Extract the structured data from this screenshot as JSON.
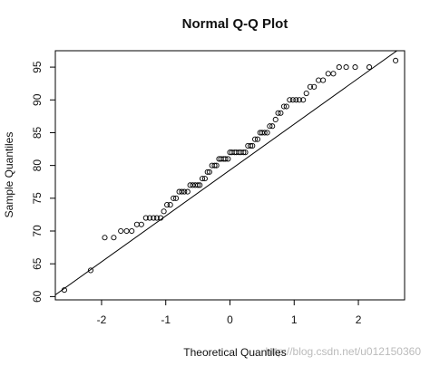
{
  "chart_data": {
    "type": "scatter",
    "title": "Normal Q-Q Plot",
    "xlabel": "Theoretical Quantiles",
    "ylabel": "Sample Quantiles",
    "xlim": [
      -2.72,
      2.72
    ],
    "ylim": [
      59.5,
      97.5
    ],
    "xticks": [
      -2,
      -1,
      0,
      1,
      2
    ],
    "yticks": [
      60,
      65,
      70,
      75,
      80,
      85,
      90,
      95
    ],
    "reference_line": {
      "slope": 7.0,
      "intercept": 79.3
    },
    "points": [
      [
        -2.58,
        61
      ],
      [
        -2.17,
        64
      ],
      [
        -1.95,
        69
      ],
      [
        -1.81,
        69
      ],
      [
        -1.7,
        70
      ],
      [
        -1.61,
        70
      ],
      [
        -1.53,
        70
      ],
      [
        -1.45,
        71
      ],
      [
        -1.38,
        71
      ],
      [
        -1.31,
        72
      ],
      [
        -1.25,
        72
      ],
      [
        -1.19,
        72
      ],
      [
        -1.14,
        72
      ],
      [
        -1.08,
        72
      ],
      [
        -1.03,
        73
      ],
      [
        -0.98,
        74
      ],
      [
        -0.93,
        74
      ],
      [
        -0.88,
        75
      ],
      [
        -0.84,
        75
      ],
      [
        -0.79,
        76
      ],
      [
        -0.75,
        76
      ],
      [
        -0.71,
        76
      ],
      [
        -0.66,
        76
      ],
      [
        -0.62,
        77
      ],
      [
        -0.58,
        77
      ],
      [
        -0.54,
        77
      ],
      [
        -0.5,
        77
      ],
      [
        -0.47,
        77
      ],
      [
        -0.43,
        78
      ],
      [
        -0.39,
        78
      ],
      [
        -0.35,
        79
      ],
      [
        -0.32,
        79
      ],
      [
        -0.28,
        80
      ],
      [
        -0.24,
        80
      ],
      [
        -0.21,
        80
      ],
      [
        -0.17,
        81
      ],
      [
        -0.14,
        81
      ],
      [
        -0.1,
        81
      ],
      [
        -0.07,
        81
      ],
      [
        -0.03,
        81
      ],
      [
        0.0,
        82
      ],
      [
        0.03,
        82
      ],
      [
        0.07,
        82
      ],
      [
        0.1,
        82
      ],
      [
        0.14,
        82
      ],
      [
        0.17,
        82
      ],
      [
        0.21,
        82
      ],
      [
        0.24,
        82
      ],
      [
        0.28,
        83
      ],
      [
        0.32,
        83
      ],
      [
        0.35,
        83
      ],
      [
        0.39,
        84
      ],
      [
        0.43,
        84
      ],
      [
        0.47,
        85
      ],
      [
        0.5,
        85
      ],
      [
        0.54,
        85
      ],
      [
        0.58,
        85
      ],
      [
        0.62,
        86
      ],
      [
        0.66,
        86
      ],
      [
        0.71,
        87
      ],
      [
        0.75,
        88
      ],
      [
        0.79,
        88
      ],
      [
        0.84,
        89
      ],
      [
        0.88,
        89
      ],
      [
        0.93,
        90
      ],
      [
        0.98,
        90
      ],
      [
        1.03,
        90
      ],
      [
        1.08,
        90
      ],
      [
        1.14,
        90
      ],
      [
        1.19,
        91
      ],
      [
        1.25,
        92
      ],
      [
        1.31,
        92
      ],
      [
        1.38,
        93
      ],
      [
        1.45,
        93
      ],
      [
        1.53,
        94
      ],
      [
        1.61,
        94
      ],
      [
        1.7,
        95
      ],
      [
        1.81,
        95
      ],
      [
        1.95,
        95
      ],
      [
        2.17,
        95
      ],
      [
        2.58,
        96
      ]
    ]
  },
  "watermark": "http://blog.csdn.net/u012150360"
}
